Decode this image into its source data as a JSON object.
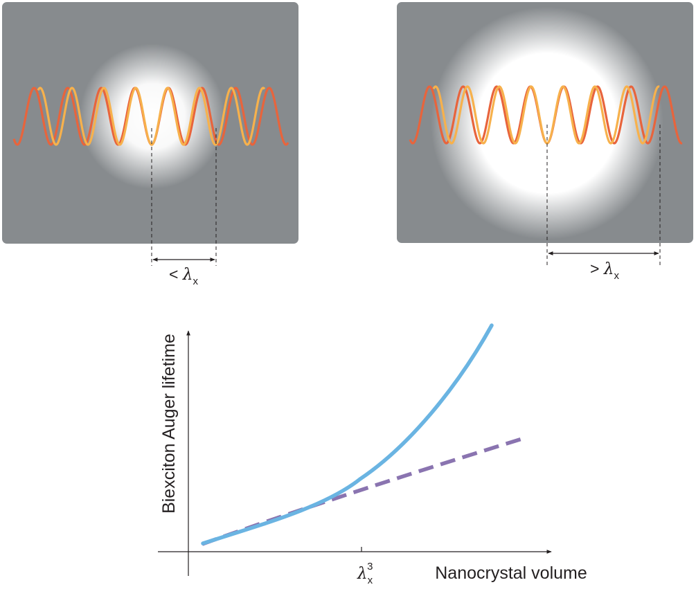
{
  "panels": [
    {
      "id": "small",
      "spacing_label_prefix": "< ",
      "spacing_label_symbol": "λ",
      "spacing_label_subscript": "x"
    },
    {
      "id": "large",
      "spacing_label_prefix": "> ",
      "spacing_label_symbol": "λ",
      "spacing_label_subscript": "x"
    }
  ],
  "plot": {
    "ylabel": "Biexciton Auger lifetime",
    "xlabel": "Nanocrystal volume",
    "xtick_symbol": "λ",
    "xtick_subscript": "x",
    "xtick_superscript": "3",
    "curve_colors": {
      "solid": "#6ab4e2",
      "dashed": "#8a74b0"
    }
  },
  "colors": {
    "panel_bg": "#878b8e",
    "wave_red": "#e8643c",
    "wave_yellow": "#f7b14c",
    "glow": "#ffffff",
    "axis": "#231f20"
  }
}
